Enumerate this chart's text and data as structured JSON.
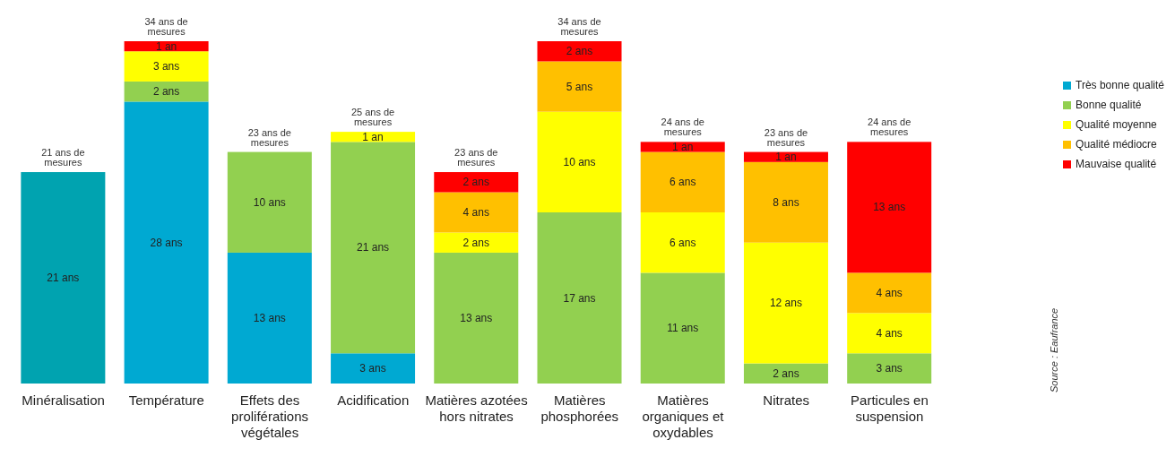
{
  "chart_data": {
    "type": "bar",
    "stacked": true,
    "categories": [
      "Minéralisation",
      "Température",
      "Effets des proliférations végétales",
      "Acidification",
      "Matières azotées hors nitrates",
      "Matières phosphorées",
      "Matières organiques et oxydables",
      "Nitrates",
      "Particules en suspension"
    ],
    "series": [
      {
        "name": "Très bonne qualité",
        "color": "#00a9d2",
        "colors": [
          "#00a3b0",
          "#00a9d2",
          "#00a9d2",
          "#00a9d2",
          "#00a9d2",
          "#00a9d2",
          "#00a9d2",
          "#00a9d2",
          "#00a9d2"
        ],
        "values": [
          21,
          28,
          13,
          3,
          null,
          null,
          null,
          null,
          null
        ],
        "value_labels": [
          "21 ans",
          "28 ans",
          "13 ans",
          "3 ans",
          null,
          null,
          null,
          null,
          null
        ]
      },
      {
        "name": "Bonne qualité",
        "color": "#92d050",
        "values": [
          null,
          2,
          10,
          21,
          13,
          17,
          11,
          2,
          3
        ],
        "value_labels": [
          null,
          "2 ans",
          "10 ans",
          "21 ans",
          "13 ans",
          "17 ans",
          "11 ans",
          "2 ans",
          "3 ans"
        ]
      },
      {
        "name": "Qualité moyenne",
        "color": "#ffff00",
        "values": [
          null,
          3,
          null,
          1,
          2,
          10,
          6,
          12,
          4
        ],
        "value_labels": [
          null,
          "3 ans",
          null,
          "1 an",
          "2 ans",
          "10 ans",
          "6 ans",
          "12 ans",
          "4 ans"
        ]
      },
      {
        "name": "Qualité médiocre",
        "color": "#ffc000",
        "values": [
          null,
          null,
          null,
          null,
          4,
          5,
          6,
          8,
          4
        ],
        "value_labels": [
          null,
          null,
          null,
          null,
          "4 ans",
          "5 ans",
          "6 ans",
          "8 ans",
          "4 ans"
        ]
      },
      {
        "name": "Mauvaise qualité",
        "color": "#ff0000",
        "values": [
          null,
          1,
          null,
          null,
          2,
          2,
          1,
          1,
          13
        ],
        "value_labels": [
          null,
          "1 an",
          null,
          null,
          "2 ans",
          "2 ans",
          "1 an",
          "1 an",
          "13 ans"
        ]
      }
    ],
    "totals": [
      "21 ans de mesures",
      "34 ans de mesures",
      "23 ans de mesures",
      "25 ans de mesures",
      "23 ans de mesures",
      "34 ans de mesures",
      "24 ans de mesures",
      "23 ans de mesures",
      "24 ans de mesures"
    ],
    "legend": "right",
    "annotations": [
      "Source : Eaufrance"
    ]
  }
}
